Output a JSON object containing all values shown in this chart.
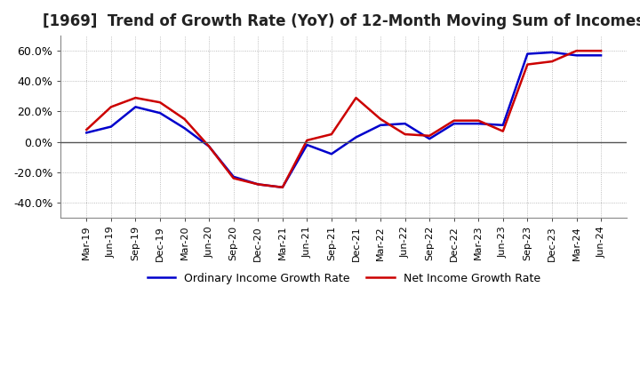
{
  "title": "[1969]  Trend of Growth Rate (YoY) of 12-Month Moving Sum of Incomes",
  "title_fontsize": 12,
  "legend_labels": [
    "Ordinary Income Growth Rate",
    "Net Income Growth Rate"
  ],
  "legend_colors": [
    "#0000cc",
    "#cc0000"
  ],
  "ylim": [
    -50,
    70
  ],
  "yticks": [
    -40,
    -20,
    0,
    20,
    40,
    60
  ],
  "background_color": "#ffffff",
  "plot_bg_color": "#ffffff",
  "grid_color": "#aaaaaa",
  "dates": [
    "Mar-19",
    "Jun-19",
    "Sep-19",
    "Dec-19",
    "Mar-20",
    "Jun-20",
    "Sep-20",
    "Dec-20",
    "Mar-21",
    "Jun-21",
    "Sep-21",
    "Dec-21",
    "Mar-22",
    "Jun-22",
    "Sep-22",
    "Dec-22",
    "Mar-23",
    "Jun-23",
    "Sep-23",
    "Dec-23",
    "Mar-24",
    "Jun-24"
  ],
  "ordinary_income": [
    6.0,
    10.0,
    23.0,
    19.0,
    9.0,
    -3.0,
    -23.0,
    -28.0,
    -30.0,
    -2.0,
    -8.0,
    3.0,
    11.0,
    12.0,
    2.0,
    12.0,
    12.0,
    11.0,
    58.0,
    59.0,
    57.0,
    57.0
  ],
  "net_income": [
    8.0,
    23.0,
    29.0,
    26.0,
    15.0,
    -3.0,
    -24.0,
    -28.0,
    -30.0,
    1.0,
    5.0,
    29.0,
    15.0,
    5.0,
    4.0,
    14.0,
    14.0,
    7.0,
    51.0,
    53.0,
    60.0,
    60.0
  ]
}
